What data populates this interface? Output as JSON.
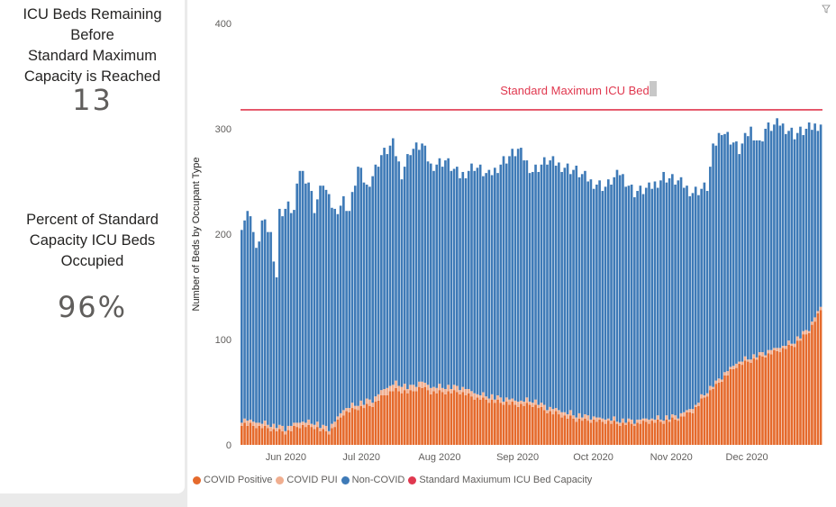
{
  "kpis": {
    "remaining_label": "ICU Beds Remaining\nBefore\nStandard Maximum\nCapacity is Reached",
    "remaining_value": "13",
    "percent_label": "Percent of Standard\nCapacity ICU Beds\nOccupied",
    "percent_value": "96%"
  },
  "chart_data": {
    "type": "bar",
    "stacked": true,
    "ylabel": "Number of Beds by Occupant Type",
    "xlabel": "",
    "ylim": [
      0,
      400
    ],
    "yticks": [
      0,
      100,
      200,
      300,
      400
    ],
    "grid": false,
    "legend_position": "bottom-left",
    "x_start": "2020-05-14",
    "x_end": "2020-12-31",
    "month_ticks": [
      {
        "date": "2020-06-01",
        "label": "Jun 2020"
      },
      {
        "date": "2020-07-01",
        "label": "Jul 2020"
      },
      {
        "date": "2020-08-01",
        "label": "Aug 2020"
      },
      {
        "date": "2020-09-01",
        "label": "Sep 2020"
      },
      {
        "date": "2020-10-01",
        "label": "Oct 2020"
      },
      {
        "date": "2020-11-01",
        "label": "Nov 2020"
      },
      {
        "date": "2020-12-01",
        "label": "Dec 2020"
      }
    ],
    "capacity_line": {
      "name": "Standard Maxiumum ICU Bed Capacity",
      "value": 318,
      "label": "Standard Maximum ICU Bed",
      "color": "#e0384f"
    },
    "series": [
      {
        "name": "COVID Positive",
        "color": "#e56a2c",
        "key": "pos"
      },
      {
        "name": "COVID PUI",
        "color": "#f0ae8f",
        "key": "pui"
      },
      {
        "name": "Non-COVID",
        "color": "#3e7ab7",
        "key": "non"
      }
    ],
    "total_keypoints": [
      [
        0,
        210
      ],
      [
        3,
        222
      ],
      [
        5,
        182
      ],
      [
        7,
        212
      ],
      [
        10,
        200
      ],
      [
        12,
        160
      ],
      [
        13,
        220
      ],
      [
        16,
        226
      ],
      [
        18,
        222
      ],
      [
        20,
        262
      ],
      [
        23,
        250
      ],
      [
        25,
        225
      ],
      [
        28,
        250
      ],
      [
        30,
        232
      ],
      [
        32,
        222
      ],
      [
        35,
        232
      ],
      [
        37,
        222
      ],
      [
        40,
        263
      ],
      [
        43,
        245
      ],
      [
        46,
        262
      ],
      [
        48,
        275
      ],
      [
        52,
        285
      ],
      [
        55,
        258
      ],
      [
        58,
        280
      ],
      [
        62,
        285
      ],
      [
        65,
        265
      ],
      [
        70,
        270
      ],
      [
        75,
        255
      ],
      [
        80,
        265
      ],
      [
        85,
        255
      ],
      [
        90,
        270
      ],
      [
        95,
        280
      ],
      [
        100,
        260
      ],
      [
        105,
        270
      ],
      [
        110,
        265
      ],
      [
        115,
        260
      ],
      [
        120,
        250
      ],
      [
        125,
        245
      ],
      [
        130,
        258
      ],
      [
        135,
        240
      ],
      [
        140,
        243
      ],
      [
        145,
        255
      ],
      [
        150,
        250
      ],
      [
        155,
        240
      ],
      [
        160,
        245
      ],
      [
        162,
        280
      ],
      [
        165,
        300
      ],
      [
        168,
        290
      ],
      [
        171,
        280
      ],
      [
        175,
        300
      ],
      [
        178,
        285
      ],
      [
        180,
        300
      ],
      [
        185,
        305
      ],
      [
        190,
        295
      ],
      [
        195,
        300
      ],
      [
        199,
        305
      ]
    ],
    "positive_keypoints": [
      [
        0,
        20
      ],
      [
        5,
        18
      ],
      [
        10,
        15
      ],
      [
        15,
        12
      ],
      [
        20,
        18
      ],
      [
        25,
        17
      ],
      [
        28,
        13
      ],
      [
        30,
        12
      ],
      [
        32,
        18
      ],
      [
        35,
        30
      ],
      [
        40,
        35
      ],
      [
        45,
        38
      ],
      [
        48,
        45
      ],
      [
        52,
        52
      ],
      [
        58,
        50
      ],
      [
        62,
        55
      ],
      [
        65,
        50
      ],
      [
        70,
        50
      ],
      [
        75,
        50
      ],
      [
        80,
        45
      ],
      [
        85,
        42
      ],
      [
        90,
        40
      ],
      [
        95,
        38
      ],
      [
        100,
        38
      ],
      [
        105,
        32
      ],
      [
        110,
        28
      ],
      [
        115,
        24
      ],
      [
        120,
        23
      ],
      [
        125,
        22
      ],
      [
        130,
        20
      ],
      [
        135,
        20
      ],
      [
        140,
        22
      ],
      [
        145,
        22
      ],
      [
        150,
        25
      ],
      [
        155,
        32
      ],
      [
        160,
        48
      ],
      [
        165,
        62
      ],
      [
        170,
        75
      ],
      [
        175,
        80
      ],
      [
        180,
        85
      ],
      [
        185,
        90
      ],
      [
        190,
        95
      ],
      [
        195,
        108
      ],
      [
        199,
        128
      ]
    ],
    "pui_keypoints": [
      [
        0,
        4
      ],
      [
        40,
        4
      ],
      [
        50,
        6
      ],
      [
        60,
        5
      ],
      [
        100,
        4
      ],
      [
        140,
        3
      ],
      [
        160,
        3
      ],
      [
        199,
        3
      ]
    ],
    "bar_count": 200
  },
  "legend": {
    "items": [
      "COVID Positive",
      "COVID PUI",
      "Non-COVID",
      "Standard Maxiumum ICU Bed Capacity"
    ],
    "colors": [
      "#e56a2c",
      "#f0ae8f",
      "#3e7ab7",
      "#e0384f"
    ]
  },
  "icons": {
    "filter": "filter-icon"
  }
}
